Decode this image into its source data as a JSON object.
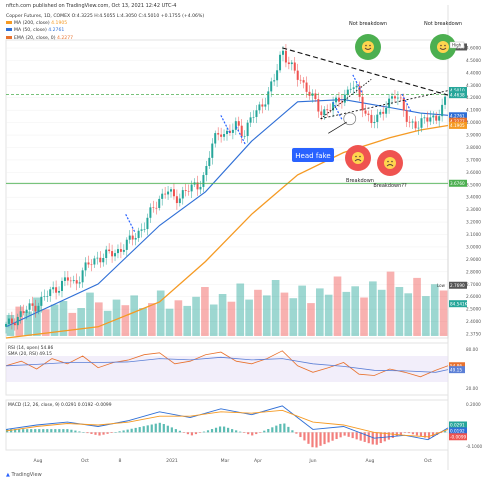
{
  "header": {
    "publisher_line": "nftch.com published on TradingView.com, Oct 13, 2021 12:42 UTC-4"
  },
  "legend": {
    "price": "Copper Futures, 1D, COMEX  O:4.3225  H:4.5055  L:4.3050  C:4.5010  +0.1755 (+4.06%)",
    "ma200": {
      "text": "MA (200, close)",
      "value": "4.1905",
      "color": "#f59a23"
    },
    "ma50": {
      "text": "MA (50, close)",
      "value": "4.2761",
      "color": "#2f6fd6"
    },
    "ema20": {
      "text": "EMA (20, close, 0)",
      "value": "4.2277",
      "color": "#e8712d"
    },
    "vol": {
      "text": "Vol",
      "value": "84.541K",
      "color": "#26a69a"
    }
  },
  "footer": {
    "brand": "TradingView"
  },
  "colors": {
    "up": "#26a69a",
    "down": "#ef5350",
    "ma200": "#f59a23",
    "ma50": "#2f6fd6",
    "support_green": "#4caf50",
    "annotation_blue": "#2962ff",
    "rsi": "#e8712d",
    "sma_rsi": "#5b7fd6",
    "macd": "#2f6fd6",
    "signal": "#f59a23"
  },
  "annotations": {
    "not_breakdown_1": "Not breakdown",
    "not_breakdown_2": "Not breakdown",
    "high_tag": "High",
    "head_fake": "Head fake",
    "breakdown_1": "Breakdown",
    "breakdown_2": "Breakdown??",
    "low_tag": "Low"
  },
  "price_axis": {
    "ticks": [
      "4.6000",
      "4.5000",
      "4.4000",
      "4.3000",
      "4.2000",
      "4.1000",
      "4.0000",
      "3.9000",
      "3.8000",
      "3.7000",
      "3.6000",
      "3.5000",
      "3.4000",
      "3.3000",
      "3.2000",
      "3.1000",
      "3.0000",
      "2.9000",
      "2.8000",
      "2.7000",
      "2.6000",
      "2.5000",
      "2.4000",
      "2.3750"
    ],
    "labels": [
      {
        "text": "4.8880",
        "value": 4.888,
        "color": "#555555"
      },
      {
        "text": "4.5010",
        "value": 4.501,
        "color": "#26a69a"
      },
      {
        "text": "4.4638",
        "value": 4.4638,
        "color": "#26a69a"
      },
      {
        "text": "4.2761",
        "value": 4.2761,
        "color": "#2f6fd6"
      },
      {
        "text": "4.2277",
        "value": 4.2277,
        "color": "#e8712d"
      },
      {
        "text": "4.1905",
        "value": 4.1905,
        "color": "#f59a23"
      },
      {
        "text": "3.6760",
        "value": 3.676,
        "color": "#4caf50"
      },
      {
        "text": "2.7690",
        "value": 2.769,
        "color": "#555555"
      },
      {
        "text": "84.541K",
        "value": 2.605,
        "color": "#26a69a"
      }
    ]
  },
  "time_axis": {
    "labels": [
      "Aug",
      "Oct",
      "8",
      "2021",
      "Mar",
      "Apr",
      "Jun",
      "Aug",
      "Oct"
    ]
  },
  "rsi_panel": {
    "legend_rsi": "RSI (14, open)  54.86",
    "legend_sma": "SMA (20, RSI)  49.15",
    "ticks": [
      "80.00",
      "20.00"
    ],
    "value_tags": [
      "54.86",
      "49.15"
    ],
    "levels": [
      70,
      30
    ]
  },
  "macd_panel": {
    "legend": "MACD (12, 26, close, 9)  0.0291  0.0192  -0.0099",
    "ticks": [
      "0.2000",
      "-0.1000"
    ],
    "value_tags": [
      "0.0291",
      "0.0192",
      "-0.0099"
    ]
  },
  "chart_data": {
    "type": "candlestick",
    "title": "Copper Futures, 1D, COMEX",
    "ylim": [
      2.3,
      4.95
    ],
    "support_level": 3.676,
    "resistance_level": 4.464,
    "close_path": [
      [
        0,
        2.4
      ],
      [
        10,
        2.52
      ],
      [
        20,
        2.6
      ],
      [
        30,
        2.72
      ],
      [
        40,
        2.82
      ],
      [
        45,
        2.78
      ],
      [
        50,
        2.9
      ],
      [
        60,
        3.02
      ],
      [
        70,
        3.05
      ],
      [
        80,
        3.15
      ],
      [
        90,
        3.3
      ],
      [
        100,
        3.55
      ],
      [
        105,
        3.62
      ],
      [
        110,
        3.52
      ],
      [
        115,
        3.6
      ],
      [
        125,
        3.65
      ],
      [
        130,
        3.78
      ],
      [
        135,
        4.05
      ],
      [
        140,
        4.15
      ],
      [
        145,
        4.1
      ],
      [
        150,
        4.2
      ],
      [
        155,
        4.12
      ],
      [
        160,
        4.25
      ],
      [
        165,
        4.35
      ],
      [
        170,
        4.45
      ],
      [
        175,
        4.6
      ],
      [
        180,
        4.88
      ],
      [
        185,
        4.72
      ],
      [
        190,
        4.62
      ],
      [
        195,
        4.55
      ],
      [
        200,
        4.42
      ],
      [
        205,
        4.3
      ],
      [
        210,
        4.35
      ],
      [
        215,
        4.38
      ],
      [
        220,
        4.45
      ],
      [
        225,
        4.55
      ],
      [
        228,
        4.5
      ],
      [
        233,
        4.35
      ],
      [
        238,
        4.22
      ],
      [
        243,
        4.25
      ],
      [
        248,
        4.4
      ],
      [
        253,
        4.45
      ],
      [
        258,
        4.38
      ],
      [
        263,
        4.22
      ],
      [
        268,
        4.15
      ],
      [
        272,
        4.25
      ],
      [
        276,
        4.3
      ],
      [
        280,
        4.2
      ],
      [
        284,
        4.35
      ],
      [
        288,
        4.5
      ]
    ],
    "ma50": [
      [
        0,
        2.4
      ],
      [
        60,
        2.78
      ],
      [
        100,
        3.3
      ],
      [
        130,
        3.6
      ],
      [
        160,
        4.05
      ],
      [
        190,
        4.4
      ],
      [
        220,
        4.42
      ],
      [
        250,
        4.35
      ],
      [
        270,
        4.3
      ],
      [
        288,
        4.28
      ]
    ],
    "ma200": [
      [
        0,
        2.3
      ],
      [
        60,
        2.4
      ],
      [
        100,
        2.62
      ],
      [
        130,
        2.98
      ],
      [
        160,
        3.4
      ],
      [
        190,
        3.75
      ],
      [
        220,
        3.95
      ],
      [
        250,
        4.08
      ],
      [
        270,
        4.15
      ],
      [
        288,
        4.19
      ]
    ],
    "volume": [
      0.3,
      0.42,
      0.35,
      0.55,
      0.38,
      0.45,
      0.5,
      0.33,
      0.4,
      0.62,
      0.48,
      0.36,
      0.52,
      0.44,
      0.58,
      0.4,
      0.47,
      0.65,
      0.39,
      0.51,
      0.43,
      0.56,
      0.7,
      0.45,
      0.6,
      0.49,
      0.75,
      0.52,
      0.66,
      0.58,
      0.8,
      0.62,
      0.54,
      0.72,
      0.47,
      0.68,
      0.59,
      0.85,
      0.63,
      0.71,
      0.55,
      0.78,
      0.66,
      0.92,
      0.7,
      0.61,
      0.83,
      0.57,
      0.74,
      0.65
    ],
    "rsi": [
      [
        0,
        55
      ],
      [
        10,
        62
      ],
      [
        20,
        50
      ],
      [
        30,
        66
      ],
      [
        40,
        58
      ],
      [
        50,
        70
      ],
      [
        60,
        52
      ],
      [
        70,
        60
      ],
      [
        80,
        64
      ],
      [
        90,
        72
      ],
      [
        100,
        75
      ],
      [
        110,
        58
      ],
      [
        120,
        62
      ],
      [
        130,
        72
      ],
      [
        140,
        76
      ],
      [
        150,
        62
      ],
      [
        160,
        58
      ],
      [
        170,
        66
      ],
      [
        180,
        78
      ],
      [
        190,
        55
      ],
      [
        200,
        45
      ],
      [
        210,
        52
      ],
      [
        220,
        60
      ],
      [
        230,
        42
      ],
      [
        240,
        40
      ],
      [
        250,
        50
      ],
      [
        260,
        45
      ],
      [
        270,
        38
      ],
      [
        280,
        48
      ],
      [
        288,
        55
      ]
    ],
    "rsi_sma": [
      [
        0,
        55
      ],
      [
        20,
        57
      ],
      [
        40,
        60
      ],
      [
        60,
        60
      ],
      [
        80,
        61
      ],
      [
        100,
        66
      ],
      [
        120,
        64
      ],
      [
        140,
        68
      ],
      [
        160,
        64
      ],
      [
        180,
        66
      ],
      [
        200,
        58
      ],
      [
        220,
        54
      ],
      [
        240,
        48
      ],
      [
        260,
        47
      ],
      [
        280,
        45
      ],
      [
        288,
        49
      ]
    ],
    "macd": [
      [
        0,
        0.02
      ],
      [
        20,
        0.05
      ],
      [
        40,
        0.07
      ],
      [
        60,
        0.04
      ],
      [
        80,
        0.08
      ],
      [
        100,
        0.14
      ],
      [
        120,
        0.1
      ],
      [
        140,
        0.16
      ],
      [
        160,
        0.12
      ],
      [
        180,
        0.18
      ],
      [
        200,
        0.02
      ],
      [
        220,
        0.04
      ],
      [
        240,
        -0.04
      ],
      [
        260,
        -0.02
      ],
      [
        275,
        -0.05
      ],
      [
        288,
        0.03
      ]
    ],
    "signal": [
      [
        0,
        0.01
      ],
      [
        20,
        0.04
      ],
      [
        40,
        0.06
      ],
      [
        60,
        0.05
      ],
      [
        80,
        0.07
      ],
      [
        100,
        0.11
      ],
      [
        120,
        0.11
      ],
      [
        140,
        0.14
      ],
      [
        160,
        0.13
      ],
      [
        180,
        0.15
      ],
      [
        200,
        0.07
      ],
      [
        220,
        0.05
      ],
      [
        240,
        0.0
      ],
      [
        260,
        -0.02
      ],
      [
        275,
        -0.03
      ],
      [
        288,
        0.02
      ]
    ]
  }
}
